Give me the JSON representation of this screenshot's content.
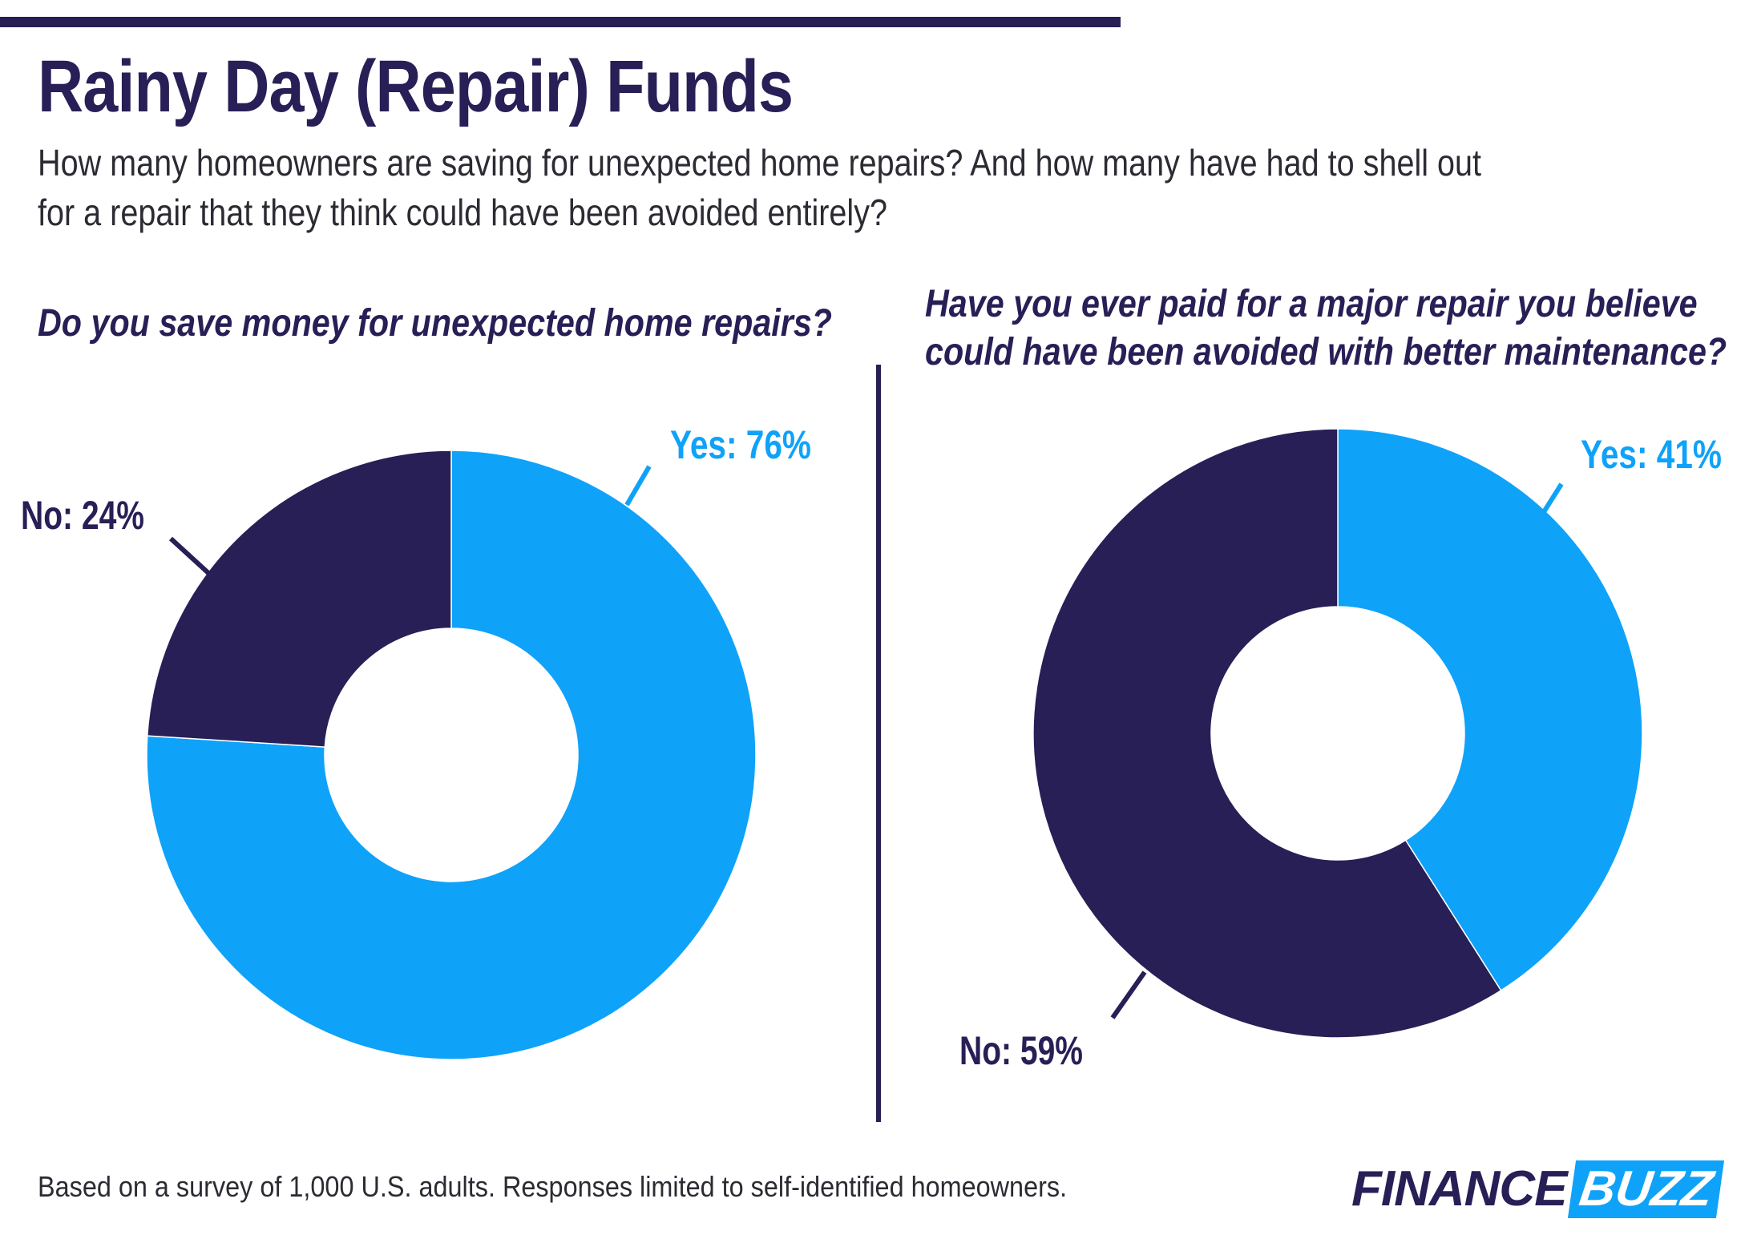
{
  "header": {
    "title": "Rainy Day (Repair) Funds",
    "subtitle_line1": "How many homeowners are saving for unexpected home repairs? And how many have had to shell out",
    "subtitle_line2": "for a repair that they think could have been avoided entirely?"
  },
  "colors": {
    "yes": "#0fa2f9",
    "no": "#271f56",
    "text": "#271f56",
    "body_text": "#2b2b33"
  },
  "chart_data": [
    {
      "type": "pie",
      "title_line1": "Do you save money for unexpected home repairs?",
      "categories": [
        "Yes",
        "No"
      ],
      "values": [
        76,
        24
      ],
      "labels": [
        "Yes: 76%",
        "No: 24%"
      ],
      "colors": [
        "#0fa2f9",
        "#271f56"
      ]
    },
    {
      "type": "pie",
      "title_line1": "Have you ever paid for a major repair you believe",
      "title_line2": "could have been avoided with better maintenance?",
      "categories": [
        "Yes",
        "No"
      ],
      "values": [
        41,
        59
      ],
      "labels": [
        "Yes: 41%",
        "No: 59%"
      ],
      "colors": [
        "#0fa2f9",
        "#271f56"
      ]
    }
  ],
  "footer": {
    "note": "Based on a survey of 1,000 U.S. adults. Responses limited to self-identified homeowners.",
    "logo_part1": "FINANCE",
    "logo_part2": "BUZZ"
  }
}
